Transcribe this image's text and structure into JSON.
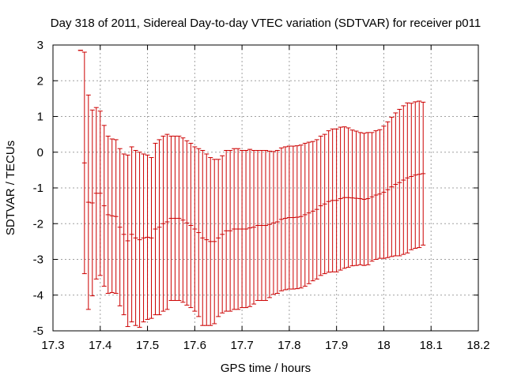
{
  "chart_data": {
    "type": "errorbar",
    "title": "Day 318 of 2011, Sidereal Day-to-day VTEC variation (SDTVAR) for receiver p011",
    "xlabel": "GPS time / hours",
    "ylabel": "SDTVAR / TECUs",
    "xlim": [
      17.3,
      18.2
    ],
    "ylim": [
      -5,
      3
    ],
    "xticks": [
      17.3,
      17.4,
      17.5,
      17.6,
      17.7,
      17.8,
      17.9,
      18,
      18.1,
      18.2
    ],
    "xtick_labels": [
      "17.3",
      "17.4",
      "17.5",
      "17.6",
      "17.7",
      "17.8",
      "17.9",
      "18",
      "18.1",
      "18.2"
    ],
    "yticks": [
      -5,
      -4,
      -3,
      -2,
      -1,
      0,
      1,
      2,
      3
    ],
    "ytick_labels": [
      "-5",
      "-4",
      "-3",
      "-2",
      "-1",
      "0",
      "1",
      "2",
      "3"
    ],
    "grid": true,
    "series_color": "#cc0000",
    "x_start": 17.3583,
    "x_step": 0.008333,
    "mean": [
      2.85,
      -0.3,
      -1.4,
      -1.42,
      -1.15,
      -1.15,
      -1.5,
      -1.75,
      -1.78,
      -1.8,
      -2.1,
      -2.3,
      -2.48,
      -2.3,
      -2.4,
      -2.45,
      -2.4,
      -2.38,
      -2.4,
      -2.15,
      -2.1,
      -2.0,
      -1.95,
      -1.85,
      -1.85,
      -1.85,
      -1.9,
      -1.98,
      -2.05,
      -2.15,
      -2.25,
      -2.4,
      -2.45,
      -2.5,
      -2.5,
      -2.4,
      -2.3,
      -2.2,
      -2.2,
      -2.15,
      -2.15,
      -2.15,
      -2.15,
      -2.12,
      -2.1,
      -2.05,
      -2.05,
      -2.05,
      -2.02,
      -1.98,
      -1.95,
      -1.88,
      -1.85,
      -1.83,
      -1.83,
      -1.82,
      -1.8,
      -1.75,
      -1.7,
      -1.65,
      -1.6,
      -1.5,
      -1.45,
      -1.38,
      -1.35,
      -1.35,
      -1.3,
      -1.27,
      -1.27,
      -1.28,
      -1.29,
      -1.3,
      -1.32,
      -1.3,
      -1.25,
      -1.2,
      -1.17,
      -1.12,
      -1.05,
      -0.97,
      -0.9,
      -0.85,
      -0.78,
      -0.72,
      -0.68,
      -0.64,
      -0.62,
      -0.6
    ],
    "err": [
      0.0,
      3.1,
      3.0,
      2.6,
      2.4,
      2.3,
      2.25,
      2.2,
      2.15,
      2.15,
      2.2,
      2.25,
      2.4,
      2.45,
      2.45,
      2.45,
      2.35,
      2.3,
      2.25,
      2.4,
      2.45,
      2.45,
      2.45,
      2.3,
      2.3,
      2.3,
      2.3,
      2.3,
      2.3,
      2.3,
      2.35,
      2.45,
      2.4,
      2.35,
      2.3,
      2.2,
      2.2,
      2.25,
      2.25,
      2.25,
      2.25,
      2.2,
      2.2,
      2.2,
      2.15,
      2.1,
      2.1,
      2.1,
      2.05,
      2.0,
      2.0,
      2.0,
      2.0,
      2.0,
      2.0,
      2.0,
      2.0,
      2.0,
      1.98,
      1.95,
      1.95,
      1.95,
      1.95,
      1.98,
      2.0,
      2.0,
      2.0,
      1.98,
      1.95,
      1.9,
      1.88,
      1.85,
      1.85,
      1.85,
      1.8,
      1.8,
      1.8,
      1.85,
      1.9,
      1.95,
      2.0,
      2.05,
      2.08,
      2.1,
      2.05,
      2.05,
      2.05,
      2.0
    ]
  }
}
